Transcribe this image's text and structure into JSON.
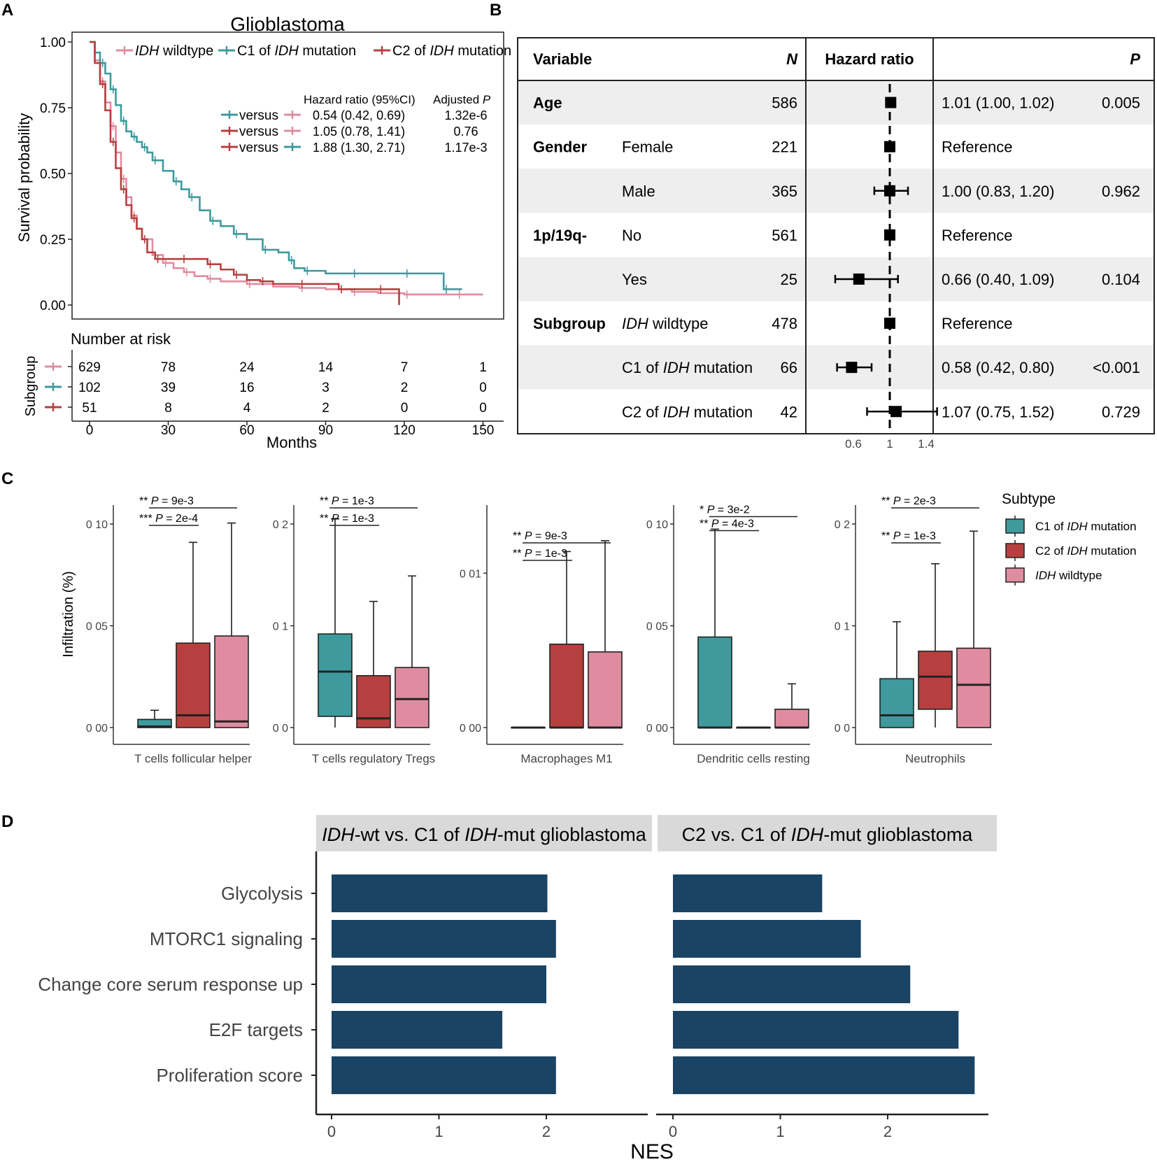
{
  "panel_labels": [
    "A",
    "B",
    "C",
    "D"
  ],
  "colors": {
    "wildtype": "#E08CA0",
    "c1": "#3E9A9C",
    "c2": "#B6403F",
    "bar": "#1B4363",
    "strip": "#D9D9D9",
    "row_shade": "#EEEEEE"
  },
  "panelA": {
    "title": "Glioblastoma",
    "legend": [
      {
        "key": "wildtype",
        "italic": "IDH",
        "text": " wildtype"
      },
      {
        "key": "c1",
        "pre": "C1 of ",
        "italic": "IDH",
        "text": " mutation"
      },
      {
        "key": "c2",
        "pre": "C2 of ",
        "italic": "IDH",
        "text": " mutation"
      }
    ],
    "hr_header": "Hazard ratio (95%CI)",
    "adj_header_pre": "Adjusted ",
    "adj_header_italic": "P",
    "comparisons": [
      {
        "a": "c1",
        "b": "wildtype",
        "word": "versus",
        "hr": "0.54 (0.42, 0.69)",
        "p": "1.32e-6"
      },
      {
        "a": "c2",
        "b": "wildtype",
        "word": "versus",
        "hr": "1.05 (0.78, 1.41)",
        "p": "0.76"
      },
      {
        "a": "c2",
        "b": "c1",
        "word": "versus",
        "hr": "1.88 (1.30, 2.71)",
        "p": "1.17e-3"
      }
    ],
    "ylabel": "Survival probability",
    "yticks": [
      "0.00",
      "0.25",
      "0.50",
      "0.75",
      "1.00"
    ],
    "xticks": [
      "0",
      "30",
      "60",
      "90",
      "120",
      "150"
    ],
    "xlabel": "Months",
    "risk_title": "Number at risk",
    "risk_ylabel": "Subgroup",
    "risk": [
      {
        "key": "wildtype",
        "values": [
          "629",
          "78",
          "24",
          "14",
          "7",
          "1"
        ]
      },
      {
        "key": "c1",
        "values": [
          "102",
          "39",
          "16",
          "3",
          "2",
          "0"
        ]
      },
      {
        "key": "c2",
        "values": [
          "51",
          "8",
          "4",
          "2",
          "0",
          "0"
        ]
      }
    ]
  },
  "panelB": {
    "headers": {
      "variable": "Variable",
      "n": "N",
      "hr": "Hazard ratio",
      "p": "P"
    },
    "rows": [
      {
        "var": "Age",
        "level": "",
        "n": "586",
        "text": "1.01 (1.00, 1.02)",
        "p": "0.005",
        "hr": 1.01,
        "lo": 1.0,
        "hi": 1.02
      },
      {
        "var": "Gender",
        "level": "Female",
        "n": "221",
        "text": "Reference",
        "p": "",
        "hr": 1.0,
        "lo": 1.0,
        "hi": 1.0
      },
      {
        "var": "",
        "level": "Male",
        "n": "365",
        "text": "1.00 (0.83, 1.20)",
        "p": "0.962",
        "hr": 1.0,
        "lo": 0.83,
        "hi": 1.2
      },
      {
        "var": "1p/19q-",
        "level": "No",
        "n": "561",
        "text": "Reference",
        "p": "",
        "hr": 1.0,
        "lo": 1.0,
        "hi": 1.0
      },
      {
        "var": "",
        "level": "Yes",
        "n": "25",
        "text": "0.66 (0.40, 1.09)",
        "p": "0.104",
        "hr": 0.66,
        "lo": 0.4,
        "hi": 1.09
      },
      {
        "var": "Subgroup",
        "level_italic": "IDH",
        "level": " wildtype",
        "n": "478",
        "text": "Reference",
        "p": "",
        "hr": 1.0,
        "lo": 1.0,
        "hi": 1.0
      },
      {
        "var": "",
        "level_pre": "C1 of ",
        "level_italic": "IDH",
        "level": " mutation",
        "n": "66",
        "text": "0.58 (0.42, 0.80)",
        "p": "<0.001",
        "hr": 0.58,
        "lo": 0.42,
        "hi": 0.8
      },
      {
        "var": "",
        "level_pre": "C2 of ",
        "level_italic": "IDH",
        "level": " mutation",
        "n": "42",
        "text": "1.07 (0.75, 1.52)",
        "p": "0.729",
        "hr": 1.07,
        "lo": 0.75,
        "hi": 1.52
      }
    ],
    "xticks": [
      {
        "v": 0.6,
        "label": "0.6"
      },
      {
        "v": 1.0,
        "label": "1"
      },
      {
        "v": 1.4,
        "label": "1.4"
      }
    ]
  },
  "panelC": {
    "ylabel": "Infiltration (%)",
    "legend_title": "Subtype",
    "legend": [
      {
        "key": "c1",
        "pre": "C1 of ",
        "italic": "IDH",
        "text": " mutation"
      },
      {
        "key": "c2",
        "pre": "C2 of ",
        "italic": "IDH",
        "text": " mutation"
      },
      {
        "key": "wildtype",
        "pre": "",
        "italic": "IDH",
        "text": " wildtype"
      }
    ],
    "facets": [
      {
        "label": "T cells follicular helper",
        "ymax": 0.11,
        "ticks": [
          {
            "v": 0.0,
            "label": "0 00"
          },
          {
            "v": 0.05,
            "label": "0 05"
          },
          {
            "v": 0.1,
            "label": "0 10"
          }
        ],
        "boxes": [
          {
            "key": "c1",
            "min": 0,
            "q1": 0,
            "med": 0.0005,
            "q3": 0.004,
            "max": 0.0085
          },
          {
            "key": "c2",
            "min": 0,
            "q1": 0,
            "med": 0.006,
            "q3": 0.0415,
            "max": 0.091
          },
          {
            "key": "wildtype",
            "min": 0,
            "q1": 0,
            "med": 0.003,
            "q3": 0.045,
            "max": 0.1005
          }
        ],
        "sig": [
          {
            "stars": "**",
            "p": "9e-3",
            "from": 0,
            "to": 2,
            "row": 0
          },
          {
            "stars": "***",
            "p": "2e-4",
            "from": 0,
            "to": 1,
            "row": 1
          }
        ]
      },
      {
        "label": "T cells regulatory  Tregs",
        "ymax": 0.22,
        "ticks": [
          {
            "v": 0.0,
            "label": "0 0"
          },
          {
            "v": 0.1,
            "label": "0 1"
          },
          {
            "v": 0.2,
            "label": "0 2"
          }
        ],
        "boxes": [
          {
            "key": "c1",
            "min": 0,
            "q1": 0.011,
            "med": 0.055,
            "q3": 0.092,
            "max": 0.205
          },
          {
            "key": "c2",
            "min": 0,
            "q1": 0,
            "med": 0.009,
            "q3": 0.051,
            "max": 0.124
          },
          {
            "key": "wildtype",
            "min": 0,
            "q1": 0,
            "med": 0.028,
            "q3": 0.059,
            "max": 0.149
          }
        ],
        "sig": [
          {
            "stars": "**",
            "p": "1e-3",
            "from": 0,
            "to": 2,
            "row": 0
          },
          {
            "stars": "**",
            "p": "1e-3",
            "from": 0,
            "to": 1,
            "row": 1
          }
        ]
      },
      {
        "label": "Macrophages M1",
        "ymax": 0.0145,
        "ticks": [
          {
            "v": 0.0,
            "label": "0 00"
          },
          {
            "v": 0.01,
            "label": "0 01"
          }
        ],
        "boxes": [
          {
            "key": "c1",
            "min": 0,
            "q1": 0,
            "med": 0,
            "q3": 0,
            "max": 0
          },
          {
            "key": "c2",
            "min": 0,
            "q1": 0,
            "med": 0,
            "q3": 0.0054,
            "max": 0.0114
          },
          {
            "key": "wildtype",
            "min": 0,
            "q1": 0,
            "med": 0,
            "q3": 0.0049,
            "max": 0.0121
          }
        ],
        "sig": [
          {
            "stars": "**",
            "p": "9e-3",
            "from": 0,
            "to": 2,
            "row": 2
          },
          {
            "stars": "**",
            "p": "1e-3",
            "from": 0,
            "to": 1,
            "row": 3
          }
        ]
      },
      {
        "label": "Dendritic cells resting",
        "ymax": 0.11,
        "ticks": [
          {
            "v": 0.0,
            "label": "0 00"
          },
          {
            "v": 0.05,
            "label": "0 05"
          },
          {
            "v": 0.1,
            "label": "0 10"
          }
        ],
        "boxes": [
          {
            "key": "c1",
            "min": 0,
            "q1": 0,
            "med": 0,
            "q3": 0.0445,
            "max": 0.0975
          },
          {
            "key": "c2",
            "min": 0,
            "q1": 0,
            "med": 0,
            "q3": 0,
            "max": 0
          },
          {
            "key": "wildtype",
            "min": 0,
            "q1": 0,
            "med": 0,
            "q3": 0.009,
            "max": 0.0215
          }
        ],
        "sig": [
          {
            "stars": "*",
            "p": "3e-2",
            "from": 0,
            "to": 2,
            "row": 0.5
          },
          {
            "stars": "**",
            "p": "4e-3",
            "from": 0,
            "to": 1,
            "row": 1.3
          }
        ]
      },
      {
        "label": "Neutrophils",
        "ymax": 0.22,
        "ticks": [
          {
            "v": 0.0,
            "label": "0 0"
          },
          {
            "v": 0.1,
            "label": "0 1"
          },
          {
            "v": 0.2,
            "label": "0 2"
          }
        ],
        "boxes": [
          {
            "key": "c1",
            "min": 0,
            "q1": 0,
            "med": 0.012,
            "q3": 0.048,
            "max": 0.104
          },
          {
            "key": "c2",
            "min": 0,
            "q1": 0.018,
            "med": 0.05,
            "q3": 0.075,
            "max": 0.161
          },
          {
            "key": "wildtype",
            "min": 0,
            "q1": 0,
            "med": 0.042,
            "q3": 0.078,
            "max": 0.193
          }
        ],
        "sig": [
          {
            "stars": "**",
            "p": "2e-3",
            "from": 0,
            "to": 2,
            "row": 0
          },
          {
            "stars": "**",
            "p": "1e-3",
            "from": 0,
            "to": 1,
            "row": 2
          }
        ]
      }
    ]
  },
  "panelD": {
    "xlabel": "NES",
    "xticks": [
      0,
      1,
      2
    ],
    "facets": [
      {
        "title_pre": "",
        "title_italic1": "IDH",
        "title_mid": "-wt vs. C1 of ",
        "title_italic2": "IDH",
        "title_post": "-mut glioblastoma"
      },
      {
        "title_pre": "C2  vs. C1 of ",
        "title_italic1": "IDH",
        "title_mid": "",
        "title_italic2": "",
        "title_post": "-mut glioblastoma"
      }
    ],
    "categories": [
      "Glycolysis",
      "MTORC1 signaling",
      "Change core serum response up",
      "E2F targets",
      "Proliferation score"
    ]
  },
  "chart_data": [
    {
      "type": "line",
      "title": "Glioblastoma",
      "xlabel": "Months",
      "ylabel": "Survival probability",
      "xlim": [
        0,
        150
      ],
      "ylim": [
        0,
        1
      ],
      "series": [
        {
          "name": "IDH wildtype",
          "x": [
            0,
            2,
            4,
            6,
            8,
            10,
            12,
            14,
            16,
            18,
            20,
            24,
            28,
            32,
            36,
            40,
            45,
            50,
            60,
            70,
            80,
            90,
            100,
            110,
            120,
            130,
            140,
            150
          ],
          "y": [
            1,
            0.93,
            0.85,
            0.77,
            0.68,
            0.58,
            0.48,
            0.41,
            0.34,
            0.29,
            0.25,
            0.19,
            0.16,
            0.14,
            0.125,
            0.11,
            0.1,
            0.09,
            0.08,
            0.07,
            0.065,
            0.06,
            0.05,
            0.045,
            0.04,
            0.04,
            0.04,
            0.04
          ]
        },
        {
          "name": "C1 of IDH mutation",
          "x": [
            0,
            2,
            4,
            6,
            8,
            10,
            12,
            14,
            16,
            18,
            20,
            22,
            24,
            28,
            32,
            35,
            38,
            42,
            46,
            50,
            55,
            60,
            66,
            72,
            76,
            78,
            82,
            90,
            100,
            110,
            120,
            128,
            135,
            142
          ],
          "y": [
            1,
            0.96,
            0.92,
            0.88,
            0.82,
            0.76,
            0.7,
            0.66,
            0.64,
            0.62,
            0.6,
            0.58,
            0.55,
            0.51,
            0.47,
            0.44,
            0.41,
            0.36,
            0.32,
            0.3,
            0.27,
            0.25,
            0.21,
            0.2,
            0.17,
            0.14,
            0.13,
            0.12,
            0.12,
            0.12,
            0.12,
            0.12,
            0.06,
            0.06
          ]
        },
        {
          "name": "C2 of IDH mutation",
          "x": [
            0,
            2,
            4,
            6,
            8,
            10,
            12,
            14,
            16,
            18,
            20,
            22,
            25,
            30,
            35,
            40,
            45,
            50,
            55,
            60,
            65,
            70,
            80,
            90,
            95,
            100,
            110,
            118
          ],
          "y": [
            1,
            0.92,
            0.84,
            0.74,
            0.62,
            0.52,
            0.44,
            0.38,
            0.33,
            0.29,
            0.25,
            0.2,
            0.175,
            0.175,
            0.175,
            0.175,
            0.155,
            0.135,
            0.115,
            0.095,
            0.09,
            0.08,
            0.08,
            0.08,
            0.06,
            0.06,
            0.06,
            0.0
          ]
        }
      ]
    },
    {
      "type": "scatter",
      "title": "Hazard ratio (forest plot)",
      "xticks": [
        0.6,
        1,
        1.4
      ],
      "series": [
        {
          "name": "Age",
          "hr": 1.01,
          "lo": 1.0,
          "hi": 1.02
        },
        {
          "name": "Gender Male",
          "hr": 1.0,
          "lo": 0.83,
          "hi": 1.2
        },
        {
          "name": "1p/19q- Yes",
          "hr": 0.66,
          "lo": 0.4,
          "hi": 1.09
        },
        {
          "name": "Subgroup C1 of IDH mutation",
          "hr": 0.58,
          "lo": 0.42,
          "hi": 0.8
        },
        {
          "name": "Subgroup C2 of IDH mutation",
          "hr": 1.07,
          "lo": 0.75,
          "hi": 1.52
        }
      ]
    },
    {
      "type": "bar",
      "title": "IDH-wt vs. C1 of IDH-mut glioblastoma",
      "xlabel": "NES",
      "categories": [
        "Glycolysis",
        "MTORC1 signaling",
        "Change core serum response up",
        "E2F targets",
        "Proliferation score"
      ],
      "values": [
        2.01,
        2.09,
        2.0,
        1.59,
        2.09
      ],
      "xlim": [
        0,
        3
      ]
    },
    {
      "type": "bar",
      "title": "C2 vs. C1 of IDH-mut glioblastoma",
      "xlabel": "NES",
      "categories": [
        "Glycolysis",
        "MTORC1 signaling",
        "Change core serum response up",
        "E2F targets",
        "Proliferation score"
      ],
      "values": [
        1.39,
        1.75,
        2.21,
        2.66,
        2.81
      ],
      "xlim": [
        0,
        3
      ]
    }
  ]
}
